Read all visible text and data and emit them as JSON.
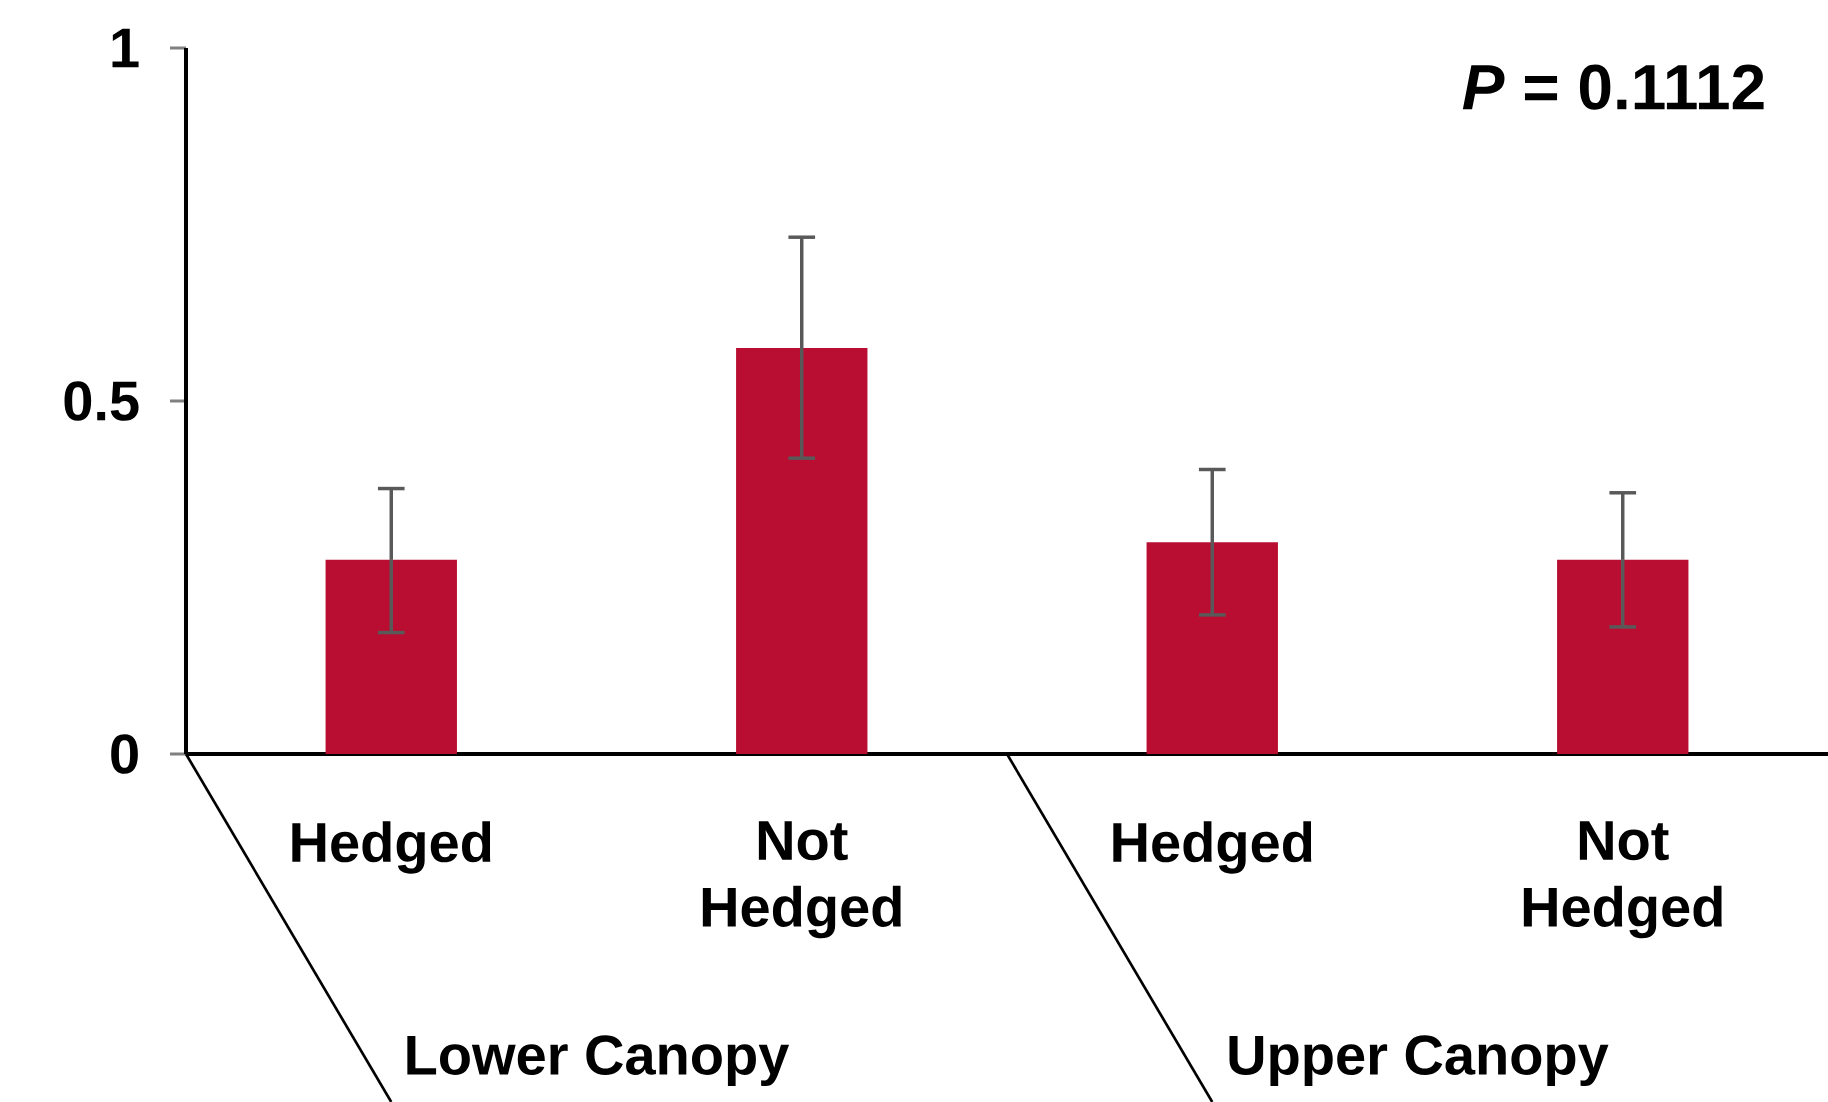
{
  "chart_data": {
    "type": "bar",
    "categories": [
      "Hedged",
      "Not Hedged",
      "Hedged",
      "Not Hedged"
    ],
    "values": [
      0.275,
      0.575,
      0.3,
      0.275
    ],
    "errors": [
      [
        0.172,
        0.376
      ],
      [
        0.419,
        0.732
      ],
      [
        0.197,
        0.403
      ],
      [
        0.18,
        0.37
      ]
    ],
    "color": "#b90e31",
    "ylim": [
      0,
      1
    ],
    "yticks": [
      0,
      0.5,
      1
    ],
    "annotations": [
      "*P* = 0.1112",
      "Lower Canopy",
      "Upper Canopy"
    ]
  }
}
